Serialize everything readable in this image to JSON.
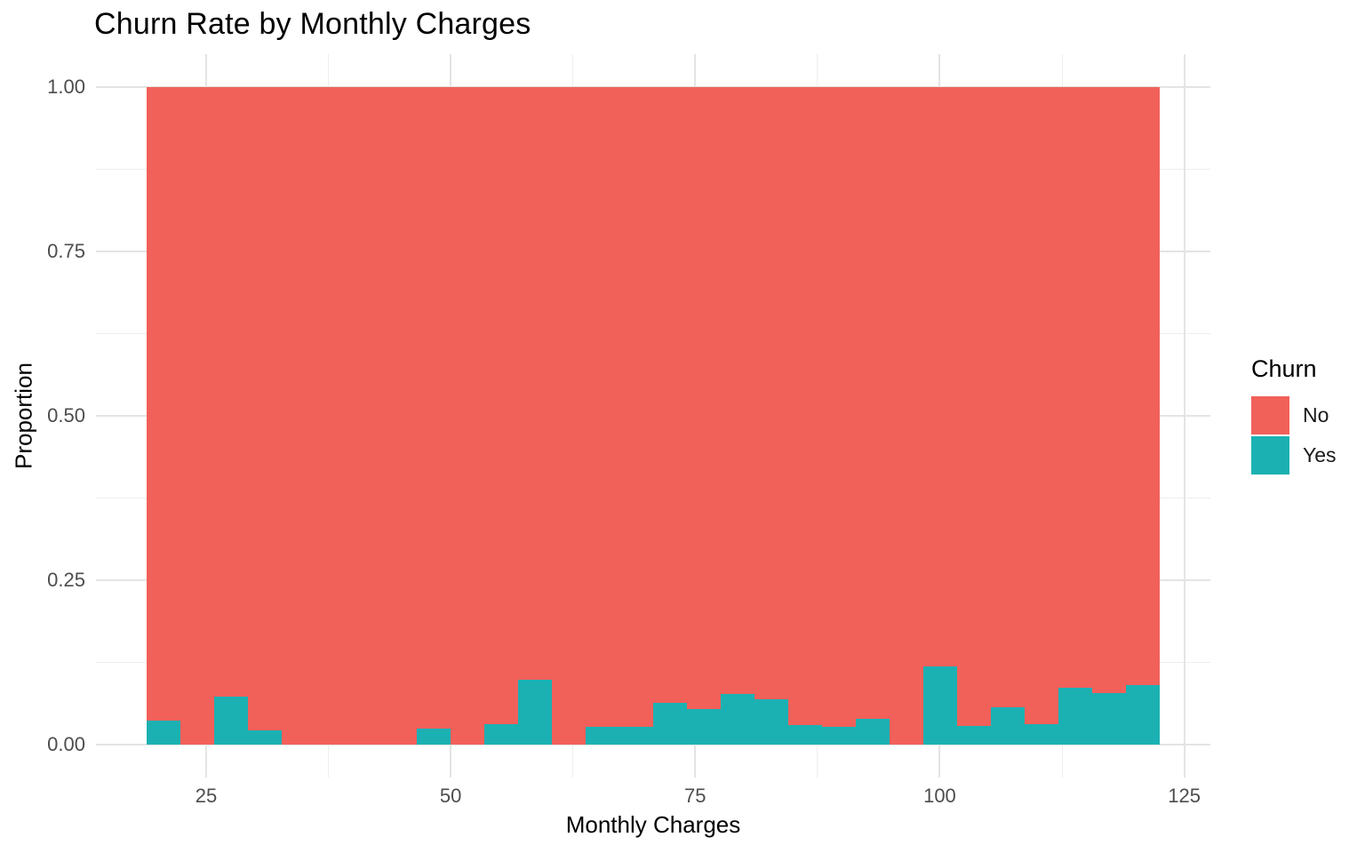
{
  "chart_data": {
    "type": "bar",
    "subtype": "stacked-filled-histogram",
    "title": "Churn Rate by Monthly Charges",
    "xlabel": "Monthly Charges",
    "ylabel": "Proportion",
    "x_ticks": [
      "25",
      "50",
      "75",
      "100",
      "125"
    ],
    "x_minor_ticks": [
      37.5,
      62.5,
      87.5,
      112.5
    ],
    "y_ticks": [
      "0.00",
      "0.25",
      "0.50",
      "0.75",
      "1.00"
    ],
    "y_minor_ticks": [
      0.125,
      0.375,
      0.625,
      0.875
    ],
    "ylim": [
      0,
      1
    ],
    "grid": "on",
    "background": "#ffffff",
    "legend": {
      "title": "Churn",
      "position": "right",
      "items": [
        {
          "label": "No",
          "color": "#f2605a"
        },
        {
          "label": "Yes",
          "color": "#1bb1b2"
        }
      ]
    },
    "bins": {
      "x_start": 18.9,
      "bin_width": 3.45,
      "count": 30,
      "x_end": 122.4
    },
    "series": [
      {
        "name": "Yes",
        "color": "#1bb1b2",
        "proportions": [
          0.037,
          0,
          0.073,
          0.022,
          0,
          0,
          0,
          0,
          0.024,
          0,
          0.031,
          0.099,
          0,
          0.027,
          0.027,
          0.064,
          0.054,
          0.077,
          0.069,
          0.03,
          0.027,
          0.039,
          0,
          0.119,
          0.028,
          0.057,
          0.031,
          0.086,
          0.079,
          0.09
        ]
      },
      {
        "name": "No",
        "color": "#f2605a",
        "note": "stacked proportion: No = 1 - Yes in every bin"
      }
    ]
  }
}
